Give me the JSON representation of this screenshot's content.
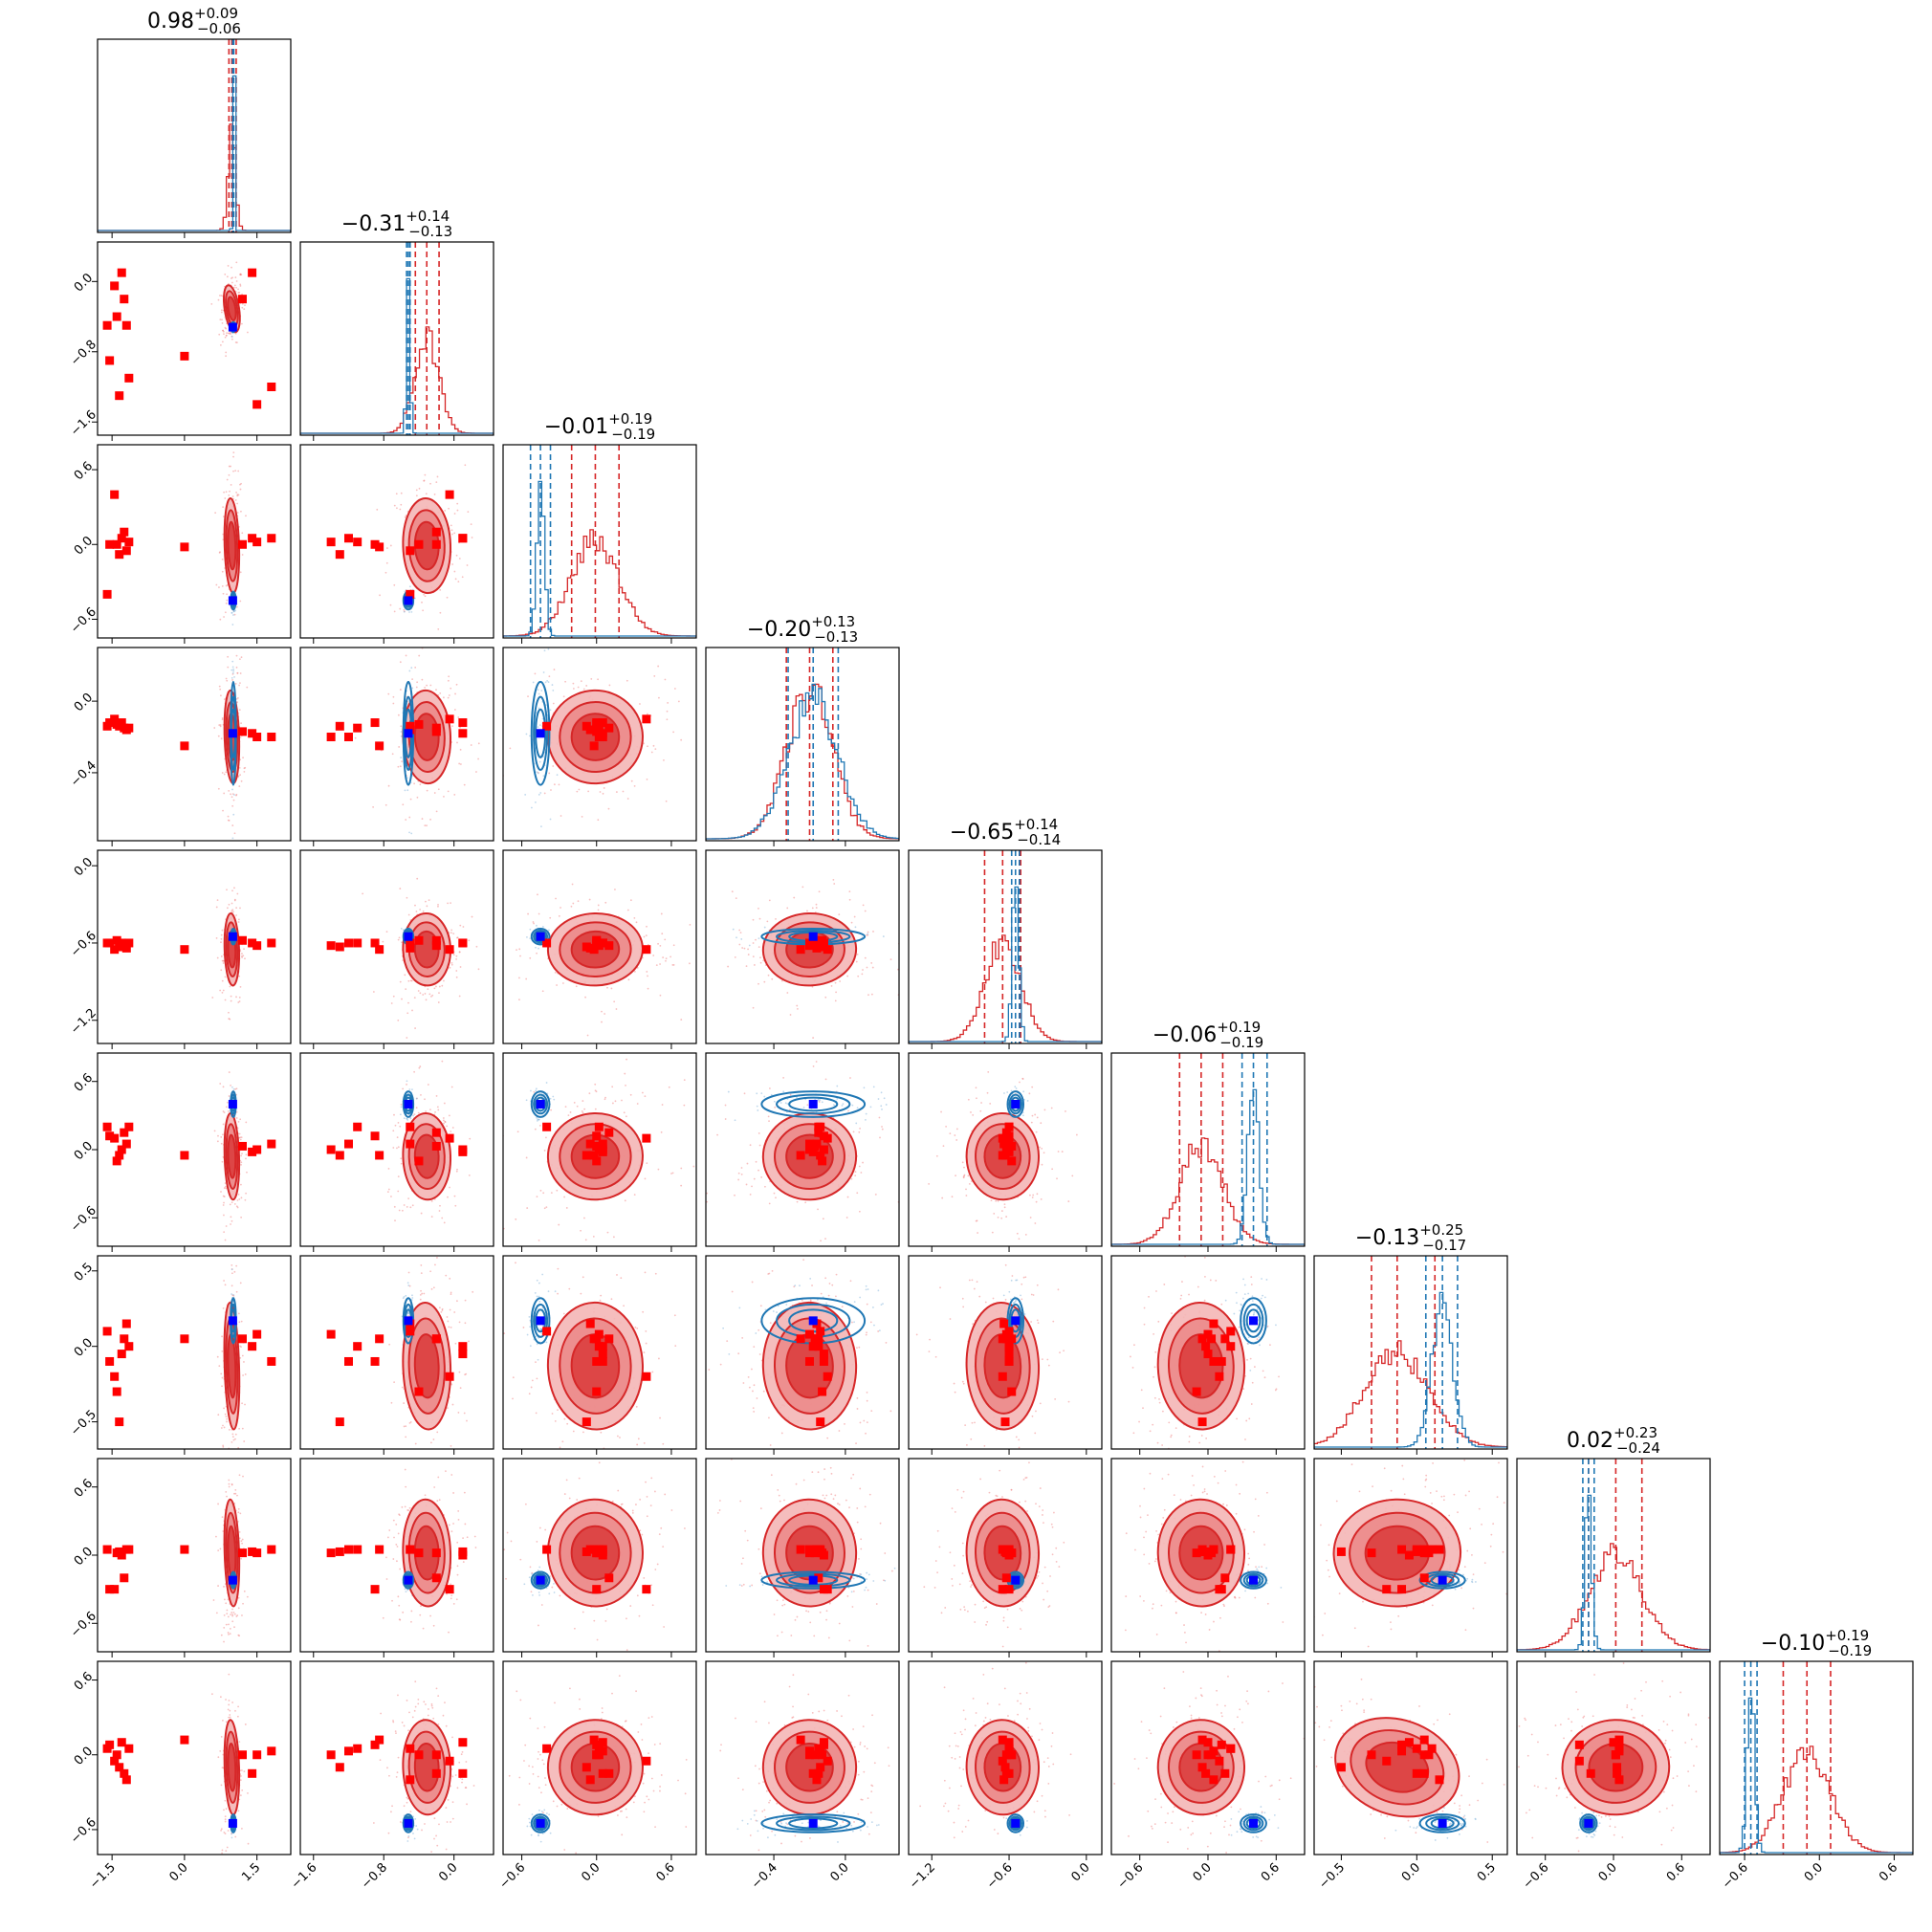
{
  "chart_data": {
    "type": "corner",
    "n_params": 9,
    "grid": false,
    "colors": {
      "posterior_a": "#d62728",
      "posterior_b": "#1f77b4",
      "truth_marker": "#0000ff",
      "marker_a": "#ff0000"
    },
    "titles": [
      {
        "median": "0.98",
        "plus": "+0.09",
        "minus": "−0.06"
      },
      {
        "median": "−0.31",
        "plus": "+0.14",
        "minus": "−0.13"
      },
      {
        "median": "−0.01",
        "plus": "+0.19",
        "minus": "−0.19"
      },
      {
        "median": "−0.20",
        "plus": "+0.13",
        "minus": "−0.13"
      },
      {
        "median": "−0.65",
        "plus": "+0.14",
        "minus": "−0.14"
      },
      {
        "median": "−0.06",
        "plus": "+0.19",
        "minus": "−0.19"
      },
      {
        "median": "−0.13",
        "plus": "+0.25",
        "minus": "−0.17"
      },
      {
        "median": "0.02",
        "plus": "+0.23",
        "minus": "−0.24"
      },
      {
        "median": "−0.10",
        "plus": "+0.19",
        "minus": "−0.19"
      }
    ],
    "ranges": [
      [
        -1.8,
        2.2
      ],
      [
        -1.75,
        0.45
      ],
      [
        -0.75,
        0.8
      ],
      [
        -0.78,
        0.3
      ],
      [
        -1.38,
        0.12
      ],
      [
        -0.85,
        0.85
      ],
      [
        -0.68,
        0.6
      ],
      [
        -0.85,
        0.85
      ],
      [
        -0.8,
        0.75
      ]
    ],
    "ticks": [
      {
        "values": [
          -1.5,
          0.0,
          1.5
        ],
        "labels": [
          "−1.5",
          "0.0",
          "1.5"
        ]
      },
      {
        "values": [
          -1.6,
          -0.8,
          0.0
        ],
        "labels": [
          "−1.6",
          "−0.8",
          "0.0"
        ]
      },
      {
        "values": [
          -0.6,
          0.0,
          0.6
        ],
        "labels": [
          "−0.6",
          "0.0",
          "0.6"
        ]
      },
      {
        "values": [
          -0.4,
          0.0
        ],
        "labels": [
          "−0.4",
          "0.0"
        ]
      },
      {
        "values": [
          -1.2,
          -0.6,
          0.0
        ],
        "labels": [
          "−1.2",
          "−0.6",
          "0.0"
        ]
      },
      {
        "values": [
          -0.6,
          0.0,
          0.6
        ],
        "labels": [
          "−0.6",
          "0.0",
          "0.6"
        ]
      },
      {
        "values": [
          -0.5,
          0.0,
          0.5
        ],
        "labels": [
          "−0.5",
          "0.0",
          "0.5"
        ]
      },
      {
        "values": [
          -0.6,
          0.0,
          0.6
        ],
        "labels": [
          "−0.6",
          "0.0",
          "0.6"
        ]
      },
      {
        "values": [
          -0.6,
          0.0,
          0.6
        ],
        "labels": [
          "−0.6",
          "0.0",
          "0.6"
        ]
      }
    ],
    "posterior_a": {
      "mean": [
        0.98,
        -0.31,
        -0.01,
        -0.2,
        -0.65,
        -0.06,
        -0.13,
        0.02,
        -0.1
      ],
      "std": [
        0.075,
        0.135,
        0.19,
        0.13,
        0.14,
        0.19,
        0.21,
        0.235,
        0.19
      ],
      "interval_lo": [
        0.92,
        -0.44,
        -0.2,
        -0.33,
        -0.79,
        -0.25,
        -0.3,
        -0.22,
        -0.29
      ],
      "interval_hi": [
        1.07,
        -0.17,
        0.18,
        -0.07,
        -0.51,
        0.13,
        0.12,
        0.25,
        0.09
      ]
    },
    "posterior_b": {
      "mean": [
        1.01,
        -0.52,
        -0.45,
        -0.18,
        -0.55,
        0.4,
        0.17,
        -0.22,
        -0.55
      ],
      "std": [
        0.012,
        0.02,
        0.03,
        0.14,
        0.025,
        0.05,
        0.07,
        0.03,
        0.03
      ],
      "interval_lo": [
        1.0,
        -0.54,
        -0.53,
        -0.32,
        -0.58,
        0.3,
        0.06,
        -0.27,
        -0.6
      ],
      "interval_hi": [
        1.02,
        -0.5,
        -0.37,
        -0.04,
        -0.52,
        0.52,
        0.27,
        -0.17,
        -0.5
      ]
    },
    "truth": [
      1.0,
      -0.52,
      -0.45,
      -0.18,
      -0.55,
      0.4,
      0.17,
      -0.22,
      -0.55
    ],
    "marker_points": [
      [
        -1.6,
        -0.5,
        -0.4,
        -0.14,
        -0.6,
        0.2,
        0.1,
        0.05,
        0.05
      ],
      [
        -1.45,
        -0.05,
        0.4,
        -0.1,
        -0.65,
        0.1,
        -0.2,
        -0.3,
        -0.05
      ],
      [
        -1.3,
        0.1,
        0.05,
        -0.12,
        -0.6,
        0.0,
        -0.05,
        0.0,
        0.1
      ],
      [
        -1.25,
        -0.2,
        0.1,
        -0.15,
        -0.62,
        0.15,
        0.05,
        -0.2,
        -0.15
      ],
      [
        -1.4,
        -0.4,
        0.0,
        -0.13,
        -0.58,
        -0.1,
        -0.3,
        0.02,
        0.0
      ],
      [
        -1.2,
        -0.5,
        -0.05,
        -0.16,
        -0.64,
        0.05,
        0.15,
        0.05,
        -0.2
      ],
      [
        -1.55,
        -0.9,
        0.0,
        -0.12,
        -0.6,
        0.12,
        -0.1,
        -0.3,
        0.08
      ],
      [
        -1.35,
        -1.3,
        -0.08,
        -0.14,
        -0.63,
        -0.05,
        -0.5,
        0.03,
        -0.1
      ],
      [
        -1.15,
        -1.1,
        0.02,
        -0.15,
        -0.6,
        0.2,
        0.0,
        0.05,
        0.05
      ],
      [
        0.0,
        -0.85,
        -0.02,
        -0.25,
        -0.65,
        -0.05,
        0.05,
        0.05,
        0.12
      ],
      [
        1.5,
        -1.4,
        0.02,
        -0.2,
        -0.62,
        0.0,
        0.08,
        0.02,
        0.0
      ],
      [
        1.8,
        -1.2,
        0.05,
        -0.2,
        -0.6,
        0.05,
        -0.1,
        0.05,
        0.03
      ],
      [
        1.4,
        0.1,
        0.05,
        -0.18,
        -0.6,
        -0.02,
        0.0,
        0.03,
        -0.15
      ],
      [
        1.2,
        -0.2,
        0.0,
        -0.17,
        -0.58,
        0.03,
        0.05,
        0.02,
        0.0
      ]
    ]
  }
}
